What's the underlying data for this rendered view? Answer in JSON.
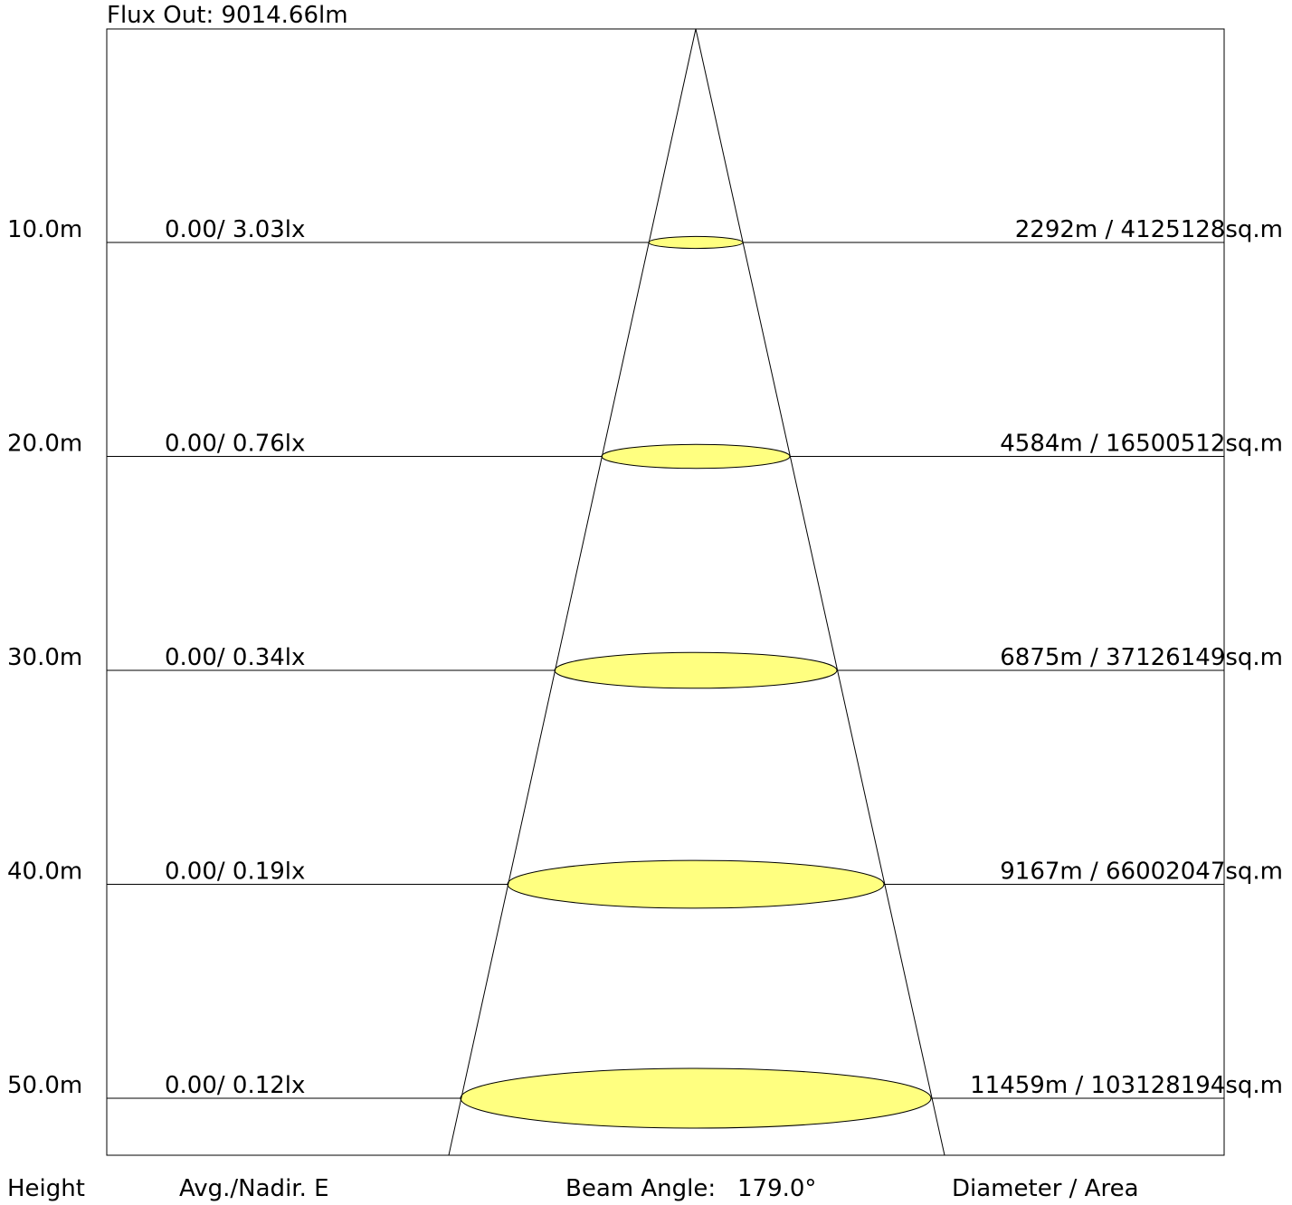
{
  "header": {
    "flux_out": "Flux Out: 9014.66lm"
  },
  "footer": {
    "height_label": "Height",
    "avg_label": "Avg./Nadir. E",
    "beam_angle_label": "Beam Angle:",
    "beam_angle_value": "179.0°",
    "diameter_label": "Diameter / Area"
  },
  "colors": {
    "spot_fill": "#ffff80",
    "line": "#000000",
    "background": "#ffffff"
  },
  "chart_data": {
    "type": "table",
    "flux_out_lm": 9014.66,
    "beam_angle_deg": 179.0,
    "rows": [
      {
        "height_m": 10,
        "height": "10.0m",
        "avg_nadir": "0.00/ 3.03lx",
        "diameter_area": "2292m / 4125128sq.m",
        "avg_lx": 0.0,
        "nadir_lx": 3.03,
        "diameter_m": 2292,
        "area_sqm": 4125128
      },
      {
        "height_m": 20,
        "height": "20.0m",
        "avg_nadir": "0.00/ 0.76lx",
        "diameter_area": "4584m / 16500512sq.m",
        "avg_lx": 0.0,
        "nadir_lx": 0.76,
        "diameter_m": 4584,
        "area_sqm": 16500512
      },
      {
        "height_m": 30,
        "height": "30.0m",
        "avg_nadir": "0.00/ 0.34lx",
        "diameter_area": "6875m / 37126149sq.m",
        "avg_lx": 0.0,
        "nadir_lx": 0.34,
        "diameter_m": 6875,
        "area_sqm": 37126149
      },
      {
        "height_m": 40,
        "height": "40.0m",
        "avg_nadir": "0.00/ 0.19lx",
        "diameter_area": "9167m / 66002047sq.m",
        "avg_lx": 0.0,
        "nadir_lx": 0.19,
        "diameter_m": 9167,
        "area_sqm": 66002047
      },
      {
        "height_m": 50,
        "height": "50.0m",
        "avg_nadir": "0.00/ 0.12lx",
        "diameter_area": "11459m / 103128194sq.m",
        "avg_lx": 0.0,
        "nadir_lx": 0.12,
        "diameter_m": 11459,
        "area_sqm": 103128194
      }
    ]
  }
}
